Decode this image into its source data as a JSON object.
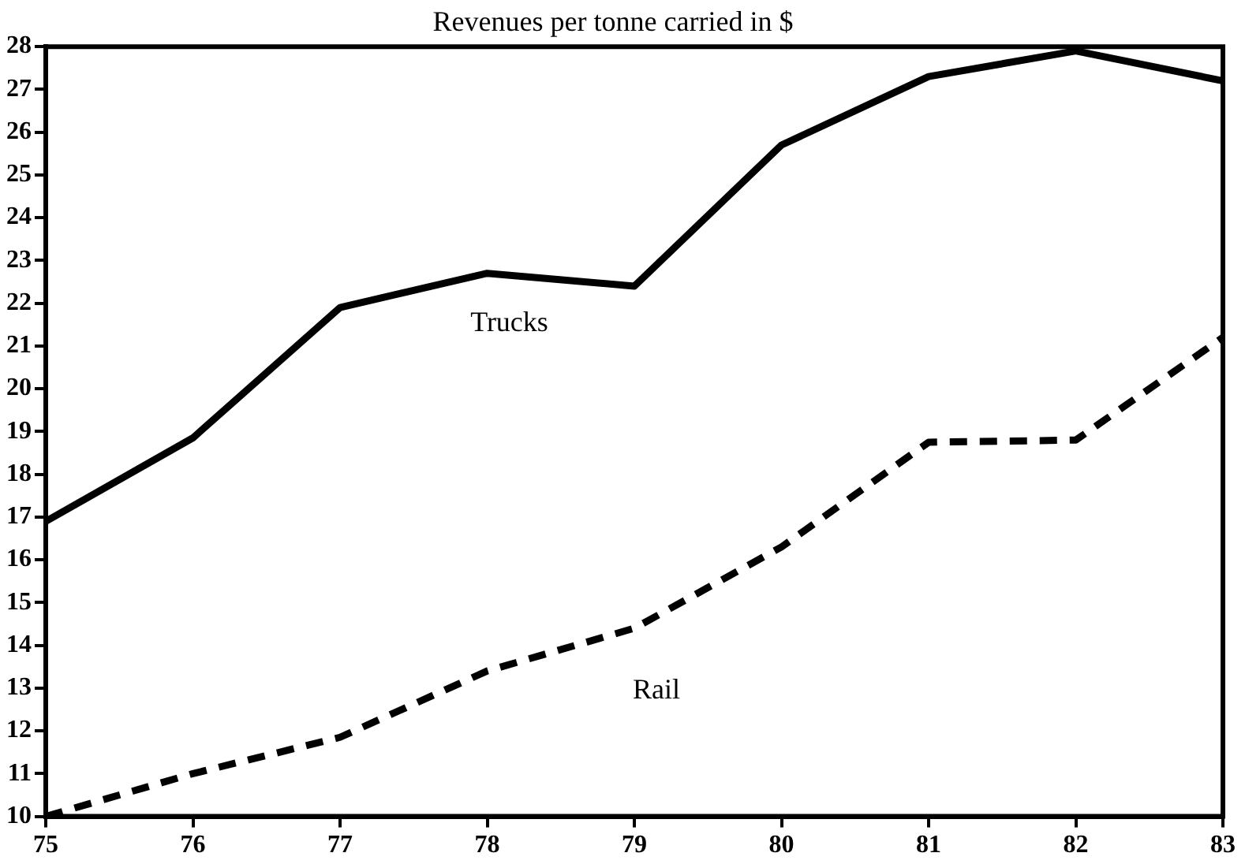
{
  "chart_data": {
    "type": "line",
    "title": "Revenues per tonne carried in $",
    "x": [
      75,
      76,
      77,
      78,
      79,
      80,
      81,
      82,
      83
    ],
    "series": [
      {
        "name": "Trucks",
        "color": "#000000",
        "line_style": "solid",
        "values": [
          16.9,
          18.85,
          21.9,
          22.7,
          22.4,
          25.7,
          27.3,
          27.9,
          27.2
        ]
      },
      {
        "name": "Rail",
        "color": "#000000",
        "line_style": "dashed",
        "values": [
          10.0,
          11.0,
          11.85,
          13.4,
          14.4,
          16.3,
          18.75,
          18.8,
          21.2
        ]
      }
    ],
    "xlim": [
      75,
      83
    ],
    "xticks": [
      75,
      76,
      77,
      78,
      79,
      80,
      81,
      82,
      83
    ],
    "ylim": [
      10,
      28
    ],
    "yticks": [
      10,
      11,
      12,
      13,
      14,
      15,
      16,
      17,
      18,
      19,
      20,
      21,
      22,
      23,
      24,
      25,
      26,
      27,
      28
    ],
    "grid": false,
    "legend": false,
    "marker": "none"
  }
}
